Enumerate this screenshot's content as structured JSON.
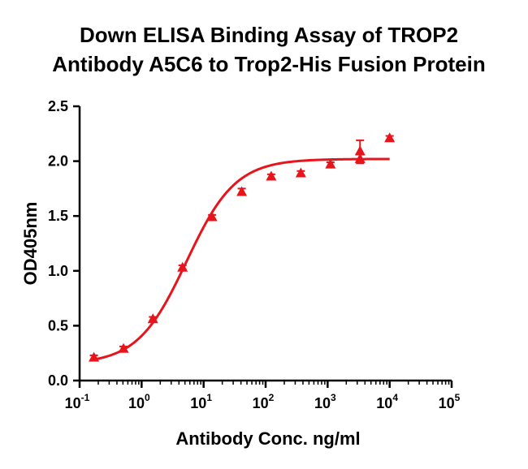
{
  "chart_data": {
    "type": "scatter",
    "title": [
      "Down  ELISA Binding Assay of TROP2",
      "Antibody A5C6 to Trop2-His Fusion Protein"
    ],
    "xlabel": "Antibody Conc. ng/ml",
    "ylabel": "OD405nm",
    "x_scale": "log",
    "xlim": [
      0.1,
      100000
    ],
    "ylim": [
      0,
      2.5
    ],
    "x_ticks": [
      {
        "base": "10",
        "exp": "-1",
        "value": 0.1
      },
      {
        "base": "10",
        "exp": "0",
        "value": 1
      },
      {
        "base": "10",
        "exp": "1",
        "value": 10
      },
      {
        "base": "10",
        "exp": "2",
        "value": 100
      },
      {
        "base": "10",
        "exp": "3",
        "value": 1000
      },
      {
        "base": "10",
        "exp": "4",
        "value": 10000
      },
      {
        "base": "10",
        "exp": "5",
        "value": 100000
      }
    ],
    "y_ticks": [
      "0.0",
      "0.5",
      "1.0",
      "1.5",
      "2.0",
      "2.5"
    ],
    "grid": false,
    "legend": "none",
    "color": "#e8141c",
    "series": [
      {
        "marker": "triangle",
        "points": [
          {
            "x": 0.17,
            "y": 0.21,
            "err": 0.02
          },
          {
            "x": 0.51,
            "y": 0.29,
            "err": 0.02
          },
          {
            "x": 1.52,
            "y": 0.56,
            "err": 0.02
          },
          {
            "x": 4.57,
            "y": 1.03,
            "err": 0.02
          },
          {
            "x": 13.7,
            "y": 1.49,
            "err": 0.02
          },
          {
            "x": 41.2,
            "y": 1.72,
            "err": 0.03
          },
          {
            "x": 123,
            "y": 1.86,
            "err": 0.02
          },
          {
            "x": 370,
            "y": 1.89,
            "err": 0.02
          },
          {
            "x": 1111,
            "y": 1.97,
            "err": 0.02
          },
          {
            "x": 3333,
            "y": 2.02,
            "err": 0.04
          },
          {
            "x": 3333,
            "y": 2.09,
            "err": 0.1
          },
          {
            "x": 10000,
            "y": 2.21,
            "err": 0.02
          }
        ],
        "fit": {
          "model": "4PL",
          "bottom": 0.15,
          "top": 2.02,
          "ec50": 5.3,
          "hill": 1.1,
          "x_range": [
            0.17,
            10000
          ]
        }
      }
    ]
  }
}
